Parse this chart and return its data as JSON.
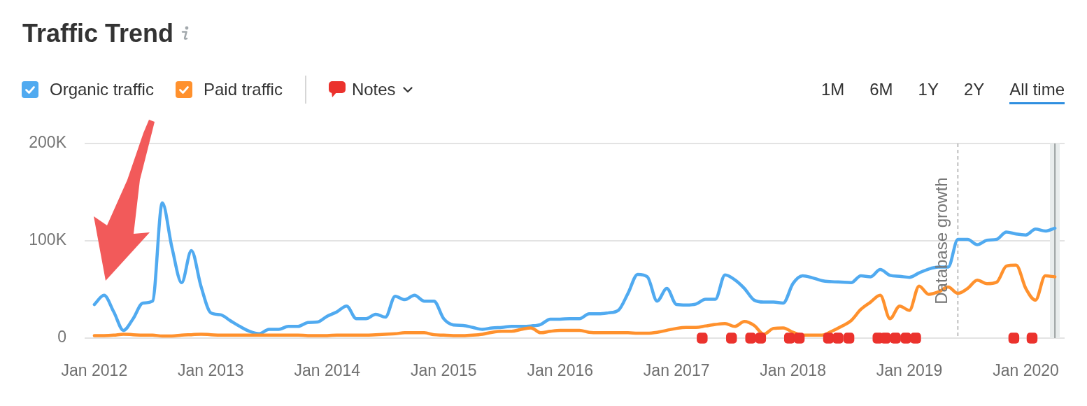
{
  "chart_data": {
    "type": "line",
    "title": "Traffic Trend",
    "x": [
      "2012-01",
      "2012-02",
      "2012-03",
      "2012-04",
      "2012-05",
      "2012-06",
      "2012-07",
      "2012-08",
      "2012-09",
      "2012-10",
      "2012-11",
      "2012-12",
      "2013-01",
      "2013-02",
      "2013-03",
      "2013-04",
      "2013-05",
      "2013-06",
      "2013-07",
      "2013-08",
      "2013-09",
      "2013-10",
      "2013-11",
      "2013-12",
      "2014-01",
      "2014-02",
      "2014-03",
      "2014-04",
      "2014-05",
      "2014-06",
      "2014-07",
      "2014-08",
      "2014-09",
      "2014-10",
      "2014-11",
      "2014-12",
      "2015-01",
      "2015-02",
      "2015-03",
      "2015-04",
      "2015-05",
      "2015-06",
      "2015-07",
      "2015-08",
      "2015-09",
      "2015-10",
      "2015-11",
      "2015-12",
      "2016-01",
      "2016-02",
      "2016-03",
      "2016-04",
      "2016-05",
      "2016-06",
      "2016-07",
      "2016-08",
      "2016-09",
      "2016-10",
      "2016-11",
      "2016-12",
      "2017-01",
      "2017-02",
      "2017-03",
      "2017-04",
      "2017-05",
      "2017-06",
      "2017-07",
      "2017-08",
      "2017-09",
      "2017-10",
      "2017-11",
      "2017-12",
      "2018-01",
      "2018-02",
      "2018-03",
      "2018-04",
      "2018-05",
      "2018-06",
      "2018-07",
      "2018-08",
      "2018-09",
      "2018-10",
      "2018-11",
      "2018-12",
      "2019-01",
      "2019-02",
      "2019-03",
      "2019-04",
      "2019-05",
      "2019-06",
      "2019-07",
      "2019-08",
      "2019-09",
      "2019-10",
      "2019-11",
      "2019-12",
      "2020-01",
      "2020-02",
      "2020-03",
      "2020-04"
    ],
    "xlim": [
      "2011-12",
      "2020-05"
    ],
    "xticks": [
      {
        "value": "2012-01",
        "label": "Jan 2012"
      },
      {
        "value": "2013-01",
        "label": "Jan 2013"
      },
      {
        "value": "2014-01",
        "label": "Jan 2014"
      },
      {
        "value": "2015-01",
        "label": "Jan 2015"
      },
      {
        "value": "2016-01",
        "label": "Jan 2016"
      },
      {
        "value": "2017-01",
        "label": "Jan 2017"
      },
      {
        "value": "2018-01",
        "label": "Jan 2018"
      },
      {
        "value": "2019-01",
        "label": "Jan 2019"
      },
      {
        "value": "2020-01",
        "label": "Jan 2020"
      }
    ],
    "ylim": [
      0,
      200000
    ],
    "yticks": [
      0,
      {
        "value": 100000,
        "label": "100K"
      },
      {
        "value": 200000,
        "label": "200K"
      }
    ],
    "series": [
      {
        "name": "Organic traffic",
        "color": "#50aaf0",
        "values": [
          34500,
          44000,
          27000,
          8000,
          20000,
          36000,
          38000,
          139000,
          93000,
          57000,
          90000,
          53000,
          26000,
          24000,
          18000,
          12000,
          7000,
          4500,
          9000,
          9000,
          12000,
          12000,
          16000,
          16500,
          22500,
          27000,
          33000,
          20000,
          20000,
          24500,
          21500,
          43000,
          39500,
          44000,
          38000,
          38000,
          20000,
          13500,
          13000,
          11000,
          9000,
          10500,
          11000,
          12000,
          12000,
          12500,
          14000,
          19500,
          19500,
          20000,
          20000,
          25000,
          25000,
          26000,
          28500,
          46000,
          65500,
          63000,
          38000,
          51000,
          34500,
          34000,
          35000,
          40000,
          40000,
          65000,
          60000,
          51000,
          39000,
          37000,
          37000,
          36000,
          56000,
          64000,
          62000,
          59000,
          58000,
          57500,
          57000,
          64000,
          63000,
          70500,
          64500,
          63500,
          62500,
          67000,
          71000,
          73000,
          73000,
          101500,
          101500,
          96000,
          100500,
          101500,
          109000,
          107000,
          106000,
          112000,
          110000,
          113000
        ]
      },
      {
        "name": "Paid traffic",
        "color": "#ff912d",
        "values": [
          2600,
          2600,
          3000,
          4000,
          3500,
          3000,
          3000,
          2200,
          2200,
          3000,
          3500,
          4000,
          3500,
          3000,
          3000,
          3000,
          3000,
          3000,
          3000,
          3000,
          3000,
          3000,
          2600,
          2600,
          2600,
          3000,
          3000,
          3000,
          3000,
          3500,
          4000,
          4500,
          5500,
          5500,
          5500,
          3500,
          3000,
          2500,
          2500,
          3000,
          4000,
          6000,
          7000,
          7000,
          9000,
          10500,
          5500,
          7000,
          8000,
          8000,
          8000,
          6000,
          5500,
          5500,
          5500,
          5500,
          5000,
          5000,
          6000,
          8000,
          10000,
          11000,
          11000,
          12500,
          14000,
          15000,
          12000,
          17000,
          13000,
          4000,
          10000,
          10500,
          6000,
          3000,
          3000,
          3000,
          7000,
          12000,
          18000,
          29500,
          37000,
          44000,
          20000,
          33000,
          28500,
          53500,
          45000,
          47500,
          52500,
          46000,
          51000,
          59500,
          56000,
          57500,
          74000,
          75000,
          51000,
          39000,
          64000,
          63000
        ]
      },
      {
        "name": "Notes",
        "type": "scatter",
        "color": "#eb322d",
        "x": [
          "2017-03-21",
          "2017-06-21",
          "2017-08-21",
          "2017-09-21",
          "2017-12-21",
          "2018-01-21",
          "2018-04-21",
          "2018-05-21",
          "2018-06-24",
          "2018-09-24",
          "2018-10-18",
          "2018-11-18",
          "2018-12-21",
          "2019-01-21",
          "2019-11-24",
          "2020-01-21"
        ],
        "values": [
          0,
          0,
          0,
          0,
          0,
          0,
          0,
          0,
          0,
          0,
          0,
          0,
          0,
          0,
          0,
          0
        ]
      }
    ],
    "ref_lines": [
      {
        "axis": "x",
        "value": "2019-06",
        "label": "Database growth",
        "color": "#a6a6a6",
        "line_style": "dashed"
      },
      {
        "axis": "x",
        "value": "2020-04",
        "color": "#9aa0a0"
      }
    ],
    "bands": [
      {
        "axis": "x",
        "from": "2020-03-16",
        "to": "2020-04-16",
        "color": "#e8ecec"
      }
    ],
    "annotations": [
      "1M",
      "6M",
      "1Y",
      "2Y",
      "All time"
    ],
    "grid": "y",
    "legend": "top left"
  }
}
